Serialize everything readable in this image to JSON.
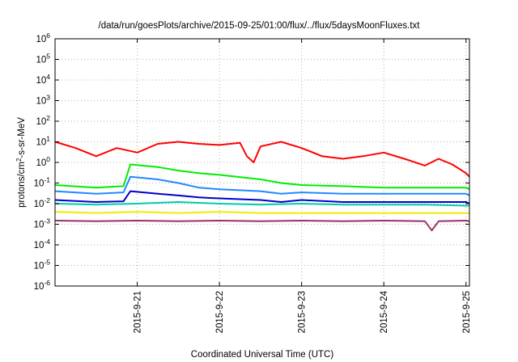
{
  "chart_data": {
    "type": "line",
    "title": "/data/run/goesPlots/archive/2015-09-25/01:00/flux/../flux/5daysMoonFluxes.txt",
    "xlabel": "Coordinated Universal Time (UTC)",
    "ylabel": {
      "base": "protons/cm",
      "sup": "2",
      "rest": "-s-sr-MeV"
    },
    "y_scale": "log",
    "ylim": [
      1e-06,
      1000000.0
    ],
    "y_ticks": [
      {
        "exp": "-6",
        "value": 1e-06
      },
      {
        "exp": "-5",
        "value": 1e-05
      },
      {
        "exp": "-4",
        "value": 0.0001
      },
      {
        "exp": "-3",
        "value": 0.001
      },
      {
        "exp": "-2",
        "value": 0.01
      },
      {
        "exp": "-1",
        "value": 0.1
      },
      {
        "exp": "0",
        "value": 1
      },
      {
        "exp": "1",
        "value": 10
      },
      {
        "exp": "2",
        "value": 100
      },
      {
        "exp": "3",
        "value": 1000
      },
      {
        "exp": "4",
        "value": 10000
      },
      {
        "exp": "5",
        "value": 100000
      },
      {
        "exp": "6",
        "value": 1000000
      }
    ],
    "y_tick_base": "10",
    "xlim": [
      "2015-09-20 00:00",
      "2015-09-25 01:00"
    ],
    "x_ticks": [
      {
        "label": "2015-9-21",
        "date": "2015-09-21"
      },
      {
        "label": "2015-9-22",
        "date": "2015-09-22"
      },
      {
        "label": "2015-9-23",
        "date": "2015-09-23"
      },
      {
        "label": "2015-9-24",
        "date": "2015-09-24"
      },
      {
        "label": "2015-9-25",
        "date": "2015-09-25"
      }
    ],
    "grid": true,
    "series": [
      {
        "color": "#ff0000",
        "x": [
          "2015-09-20 00:00",
          "2015-09-20 06:00",
          "2015-09-20 12:00",
          "2015-09-20 18:00",
          "2015-09-21 00:00",
          "2015-09-21 06:00",
          "2015-09-21 12:00",
          "2015-09-21 18:00",
          "2015-09-22 00:00",
          "2015-09-22 06:00",
          "2015-09-22 08:00",
          "2015-09-22 10:00",
          "2015-09-22 12:00",
          "2015-09-22 18:00",
          "2015-09-23 00:00",
          "2015-09-23 06:00",
          "2015-09-23 12:00",
          "2015-09-23 18:00",
          "2015-09-24 00:00",
          "2015-09-24 06:00",
          "2015-09-24 12:00",
          "2015-09-24 16:00",
          "2015-09-24 20:00",
          "2015-09-25 00:00",
          "2015-09-25 01:00"
        ],
        "y": [
          10,
          5,
          2,
          5,
          3,
          8,
          10,
          8,
          7,
          9,
          2,
          1,
          6,
          10,
          5,
          2,
          1.5,
          2,
          3,
          1.5,
          0.7,
          1.5,
          0.8,
          0.3,
          0.2
        ]
      },
      {
        "color": "#00ee00",
        "x": [
          "2015-09-20 00:00",
          "2015-09-20 12:00",
          "2015-09-20 20:00",
          "2015-09-20 22:00",
          "2015-09-21 06:00",
          "2015-09-21 12:00",
          "2015-09-21 18:00",
          "2015-09-22 00:00",
          "2015-09-22 12:00",
          "2015-09-22 18:00",
          "2015-09-23 00:00",
          "2015-09-23 12:00",
          "2015-09-24 00:00",
          "2015-09-24 12:00",
          "2015-09-25 00:00",
          "2015-09-25 01:00"
        ],
        "y": [
          0.08,
          0.06,
          0.07,
          0.8,
          0.6,
          0.4,
          0.3,
          0.25,
          0.15,
          0.1,
          0.08,
          0.07,
          0.06,
          0.06,
          0.06,
          0.05
        ]
      },
      {
        "color": "#2288ff",
        "x": [
          "2015-09-20 00:00",
          "2015-09-20 12:00",
          "2015-09-20 20:00",
          "2015-09-20 22:00",
          "2015-09-21 06:00",
          "2015-09-21 12:00",
          "2015-09-21 18:00",
          "2015-09-22 00:00",
          "2015-09-22 12:00",
          "2015-09-22 18:00",
          "2015-09-23 00:00",
          "2015-09-23 12:00",
          "2015-09-24 00:00",
          "2015-09-24 12:00",
          "2015-09-25 00:00",
          "2015-09-25 01:00"
        ],
        "y": [
          0.04,
          0.03,
          0.035,
          0.2,
          0.15,
          0.1,
          0.06,
          0.05,
          0.04,
          0.03,
          0.035,
          0.03,
          0.03,
          0.03,
          0.03,
          0.025
        ]
      },
      {
        "color": "#0000cc",
        "x": [
          "2015-09-20 00:00",
          "2015-09-20 12:00",
          "2015-09-20 20:00",
          "2015-09-20 22:00",
          "2015-09-21 06:00",
          "2015-09-21 12:00",
          "2015-09-21 18:00",
          "2015-09-22 00:00",
          "2015-09-22 12:00",
          "2015-09-22 18:00",
          "2015-09-23 00:00",
          "2015-09-23 12:00",
          "2015-09-24 00:00",
          "2015-09-24 12:00",
          "2015-09-25 00:00",
          "2015-09-25 01:00"
        ],
        "y": [
          0.015,
          0.012,
          0.013,
          0.04,
          0.03,
          0.025,
          0.02,
          0.018,
          0.015,
          0.012,
          0.015,
          0.012,
          0.012,
          0.012,
          0.012,
          0.01
        ]
      },
      {
        "color": "#00ccaa",
        "x": [
          "2015-09-20 00:00",
          "2015-09-20 12:00",
          "2015-09-21 00:00",
          "2015-09-21 12:00",
          "2015-09-22 00:00",
          "2015-09-22 12:00",
          "2015-09-23 00:00",
          "2015-09-23 12:00",
          "2015-09-24 00:00",
          "2015-09-24 12:00",
          "2015-09-25 00:00",
          "2015-09-25 01:00"
        ],
        "y": [
          0.01,
          0.009,
          0.01,
          0.012,
          0.01,
          0.009,
          0.01,
          0.009,
          0.009,
          0.009,
          0.008,
          0.008
        ]
      },
      {
        "color": "#eeee00",
        "x": [
          "2015-09-20 00:00",
          "2015-09-20 12:00",
          "2015-09-21 00:00",
          "2015-09-21 12:00",
          "2015-09-22 00:00",
          "2015-09-22 12:00",
          "2015-09-23 00:00",
          "2015-09-23 12:00",
          "2015-09-24 00:00",
          "2015-09-24 12:00",
          "2015-09-25 00:00",
          "2015-09-25 01:00"
        ],
        "y": [
          0.004,
          0.0035,
          0.004,
          0.0035,
          0.004,
          0.0035,
          0.0035,
          0.0035,
          0.0035,
          0.0035,
          0.0035,
          0.0035
        ]
      },
      {
        "color": "#993366",
        "x": [
          "2015-09-20 00:00",
          "2015-09-20 12:00",
          "2015-09-21 00:00",
          "2015-09-21 12:00",
          "2015-09-22 00:00",
          "2015-09-22 12:00",
          "2015-09-23 00:00",
          "2015-09-23 12:00",
          "2015-09-24 00:00",
          "2015-09-24 12:00",
          "2015-09-24 14:00",
          "2015-09-24 16:00",
          "2015-09-25 00:00",
          "2015-09-25 01:00"
        ],
        "y": [
          0.0015,
          0.0014,
          0.0015,
          0.0014,
          0.0015,
          0.0014,
          0.0015,
          0.0014,
          0.0015,
          0.0014,
          0.0005,
          0.0014,
          0.0015,
          0.0014
        ]
      }
    ]
  }
}
